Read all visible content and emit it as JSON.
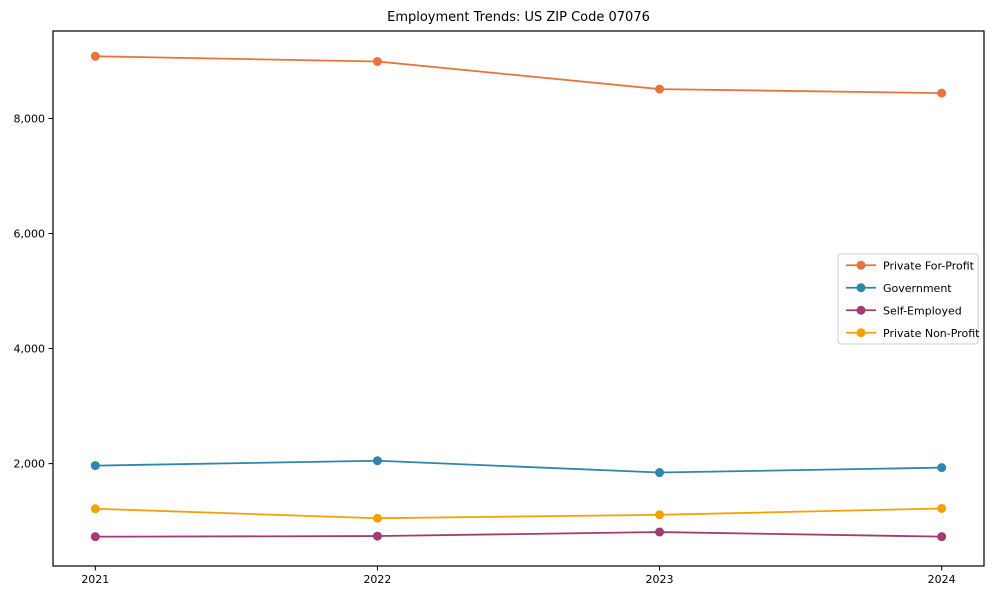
{
  "figure": {
    "background": "#ffffff",
    "frame_color": "#000000"
  },
  "chart_data": {
    "type": "line",
    "title": "Employment Trends: US ZIP Code 07076",
    "xlabel": "",
    "ylabel": "",
    "x": [
      2021,
      2022,
      2023,
      2024
    ],
    "x_tick_labels": [
      "2021",
      "2022",
      "2023",
      "2024"
    ],
    "y_ticks": [
      2000,
      4000,
      6000,
      8000
    ],
    "y_tick_labels": [
      "2,000",
      "4,000",
      "6,000",
      "8,000"
    ],
    "xlim": [
      2020.85,
      2024.15
    ],
    "ylim": [
      220,
      9520
    ],
    "grid": false,
    "legend_position": "center-right",
    "series": [
      {
        "name": "Private For-Profit",
        "color": "#E8743B",
        "values": [
          9080,
          8990,
          8510,
          8440
        ]
      },
      {
        "name": "Government",
        "color": "#2E86AB",
        "values": [
          1965,
          2050,
          1845,
          1930
        ]
      },
      {
        "name": "Self-Employed",
        "color": "#A23B72",
        "values": [
          730,
          740,
          810,
          730
        ]
      },
      {
        "name": "Private Non-Profit",
        "color": "#F5A105",
        "values": [
          1215,
          1050,
          1110,
          1220
        ]
      }
    ]
  }
}
